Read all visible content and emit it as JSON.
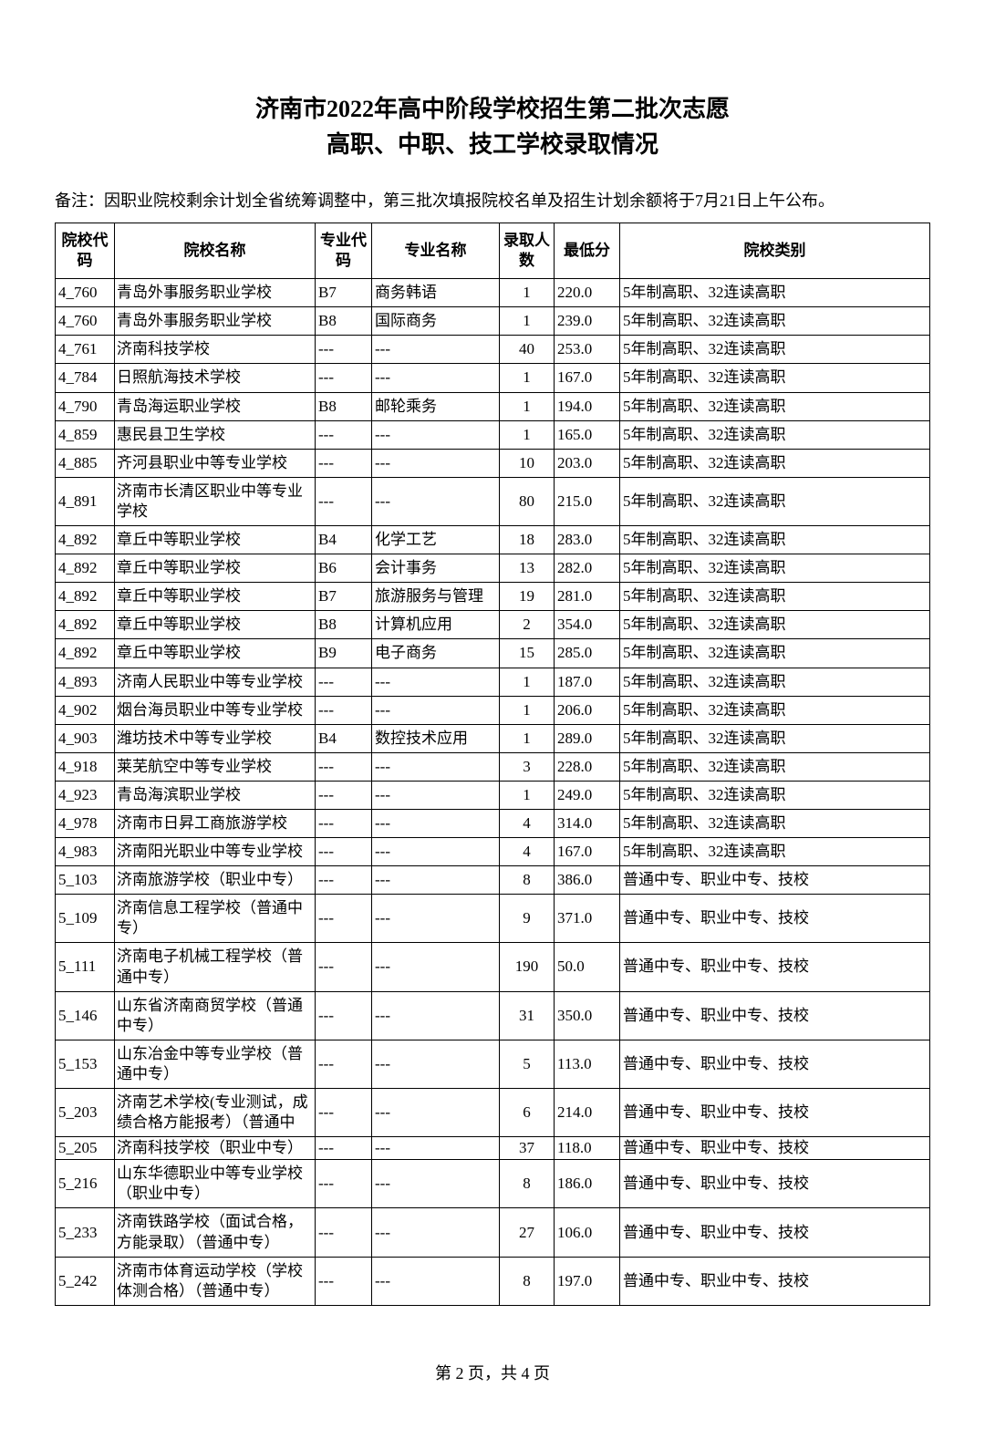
{
  "title_line1": "济南市2022年高中阶段学校招生第二批次志愿",
  "title_line2": "高职、中职、技工学校录取情况",
  "note": "备注：因职业院校剩余计划全省统筹调整中，第三批次填报院校名单及招生计划余额将于7月21日上午公布。",
  "headers": {
    "code": "院校代码",
    "name": "院校名称",
    "mcode": "专业代码",
    "mname": "专业名称",
    "count": "录取人数",
    "score": "最低分",
    "cat": "院校类别"
  },
  "rows": [
    {
      "code": "4_760",
      "name": "青岛外事服务职业学校",
      "mcode": "B7",
      "mname": "商务韩语",
      "count": "1",
      "score": "220.0",
      "cat": "5年制高职、32连读高职"
    },
    {
      "code": "4_760",
      "name": "青岛外事服务职业学校",
      "mcode": "B8",
      "mname": "国际商务",
      "count": "1",
      "score": "239.0",
      "cat": "5年制高职、32连读高职"
    },
    {
      "code": "4_761",
      "name": "济南科技学校",
      "mcode": "---",
      "mname": "---",
      "count": "40",
      "score": "253.0",
      "cat": "5年制高职、32连读高职"
    },
    {
      "code": "4_784",
      "name": "日照航海技术学校",
      "mcode": "---",
      "mname": "---",
      "count": "1",
      "score": "167.0",
      "cat": "5年制高职、32连读高职"
    },
    {
      "code": "4_790",
      "name": "青岛海运职业学校",
      "mcode": "B8",
      "mname": "邮轮乘务",
      "count": "1",
      "score": "194.0",
      "cat": "5年制高职、32连读高职"
    },
    {
      "code": "4_859",
      "name": "惠民县卫生学校",
      "mcode": "---",
      "mname": "---",
      "count": "1",
      "score": "165.0",
      "cat": "5年制高职、32连读高职"
    },
    {
      "code": "4_885",
      "name": "齐河县职业中等专业学校",
      "mcode": "---",
      "mname": "---",
      "count": "10",
      "score": "203.0",
      "cat": "5年制高职、32连读高职"
    },
    {
      "code": "4_891",
      "name": "济南市长清区职业中等专业学校",
      "mcode": "---",
      "mname": "---",
      "count": "80",
      "score": "215.0",
      "cat": "5年制高职、32连读高职"
    },
    {
      "code": "4_892",
      "name": "章丘中等职业学校",
      "mcode": "B4",
      "mname": "化学工艺",
      "count": "18",
      "score": "283.0",
      "cat": "5年制高职、32连读高职"
    },
    {
      "code": "4_892",
      "name": "章丘中等职业学校",
      "mcode": "B6",
      "mname": "会计事务",
      "count": "13",
      "score": "282.0",
      "cat": "5年制高职、32连读高职"
    },
    {
      "code": "4_892",
      "name": "章丘中等职业学校",
      "mcode": "B7",
      "mname": "旅游服务与管理",
      "count": "19",
      "score": "281.0",
      "cat": "5年制高职、32连读高职"
    },
    {
      "code": "4_892",
      "name": "章丘中等职业学校",
      "mcode": "B8",
      "mname": "计算机应用",
      "count": "2",
      "score": "354.0",
      "cat": "5年制高职、32连读高职"
    },
    {
      "code": "4_892",
      "name": "章丘中等职业学校",
      "mcode": "B9",
      "mname": "电子商务",
      "count": "15",
      "score": "285.0",
      "cat": "5年制高职、32连读高职"
    },
    {
      "code": "4_893",
      "name": "济南人民职业中等专业学校",
      "mcode": "---",
      "mname": "---",
      "count": "1",
      "score": "187.0",
      "cat": "5年制高职、32连读高职"
    },
    {
      "code": "4_902",
      "name": "烟台海员职业中等专业学校",
      "mcode": "---",
      "mname": "---",
      "count": "1",
      "score": "206.0",
      "cat": "5年制高职、32连读高职"
    },
    {
      "code": "4_903",
      "name": "潍坊技术中等专业学校",
      "mcode": "B4",
      "mname": "数控技术应用",
      "count": "1",
      "score": "289.0",
      "cat": "5年制高职、32连读高职"
    },
    {
      "code": "4_918",
      "name": "莱芜航空中等专业学校",
      "mcode": "---",
      "mname": "---",
      "count": "3",
      "score": "228.0",
      "cat": "5年制高职、32连读高职"
    },
    {
      "code": "4_923",
      "name": "青岛海滨职业学校",
      "mcode": "---",
      "mname": "---",
      "count": "1",
      "score": "249.0",
      "cat": "5年制高职、32连读高职"
    },
    {
      "code": "4_978",
      "name": "济南市日昇工商旅游学校",
      "mcode": "---",
      "mname": "---",
      "count": "4",
      "score": "314.0",
      "cat": "5年制高职、32连读高职"
    },
    {
      "code": "4_983",
      "name": "济南阳光职业中等专业学校",
      "mcode": "---",
      "mname": "---",
      "count": "4",
      "score": "167.0",
      "cat": "5年制高职、32连读高职"
    },
    {
      "code": "5_103",
      "name": "济南旅游学校（职业中专）",
      "mcode": "---",
      "mname": "---",
      "count": "8",
      "score": "386.0",
      "cat": "普通中专、职业中专、技校"
    },
    {
      "code": "5_109",
      "name": "济南信息工程学校（普通中专）",
      "mcode": "---",
      "mname": "---",
      "count": "9",
      "score": "371.0",
      "cat": "普通中专、职业中专、技校"
    },
    {
      "code": "5_111",
      "name": "济南电子机械工程学校（普通中专）",
      "mcode": "---",
      "mname": "---",
      "count": "190",
      "score": "50.0",
      "cat": "普通中专、职业中专、技校"
    },
    {
      "code": "5_146",
      "name": "山东省济南商贸学校（普通中专）",
      "mcode": "---",
      "mname": "---",
      "count": "31",
      "score": "350.0",
      "cat": "普通中专、职业中专、技校"
    },
    {
      "code": "5_153",
      "name": "山东冶金中等专业学校（普通中专）",
      "mcode": "---",
      "mname": "---",
      "count": "5",
      "score": "113.0",
      "cat": "普通中专、职业中专、技校"
    },
    {
      "code": "5_203",
      "name": "济南艺术学校(专业测试，成绩合格方能报考）（普通中",
      "mcode": "---",
      "mname": "---",
      "count": "6",
      "score": "214.0",
      "cat": "普通中专、职业中专、技校"
    },
    {
      "code": "5_205",
      "name": "济南科技学校（职业中专）",
      "mcode": "---",
      "mname": "---",
      "count": "37",
      "score": "118.0",
      "cat": "普通中专、职业中专、技校",
      "short": true
    },
    {
      "code": "5_216",
      "name": "山东华德职业中等专业学校（职业中专）",
      "mcode": "---",
      "mname": "---",
      "count": "8",
      "score": "186.0",
      "cat": "普通中专、职业中专、技校"
    },
    {
      "code": "5_233",
      "name": "济南铁路学校（面试合格，方能录取）（普通中专）",
      "mcode": "---",
      "mname": "---",
      "count": "27",
      "score": "106.0",
      "cat": "普通中专、职业中专、技校"
    },
    {
      "code": "5_242",
      "name": "济南市体育运动学校（学校体测合格）（普通中专）",
      "mcode": "---",
      "mname": "---",
      "count": "8",
      "score": "197.0",
      "cat": "普通中专、职业中专、技校"
    }
  ],
  "footer": "第 2 页，共 4 页"
}
